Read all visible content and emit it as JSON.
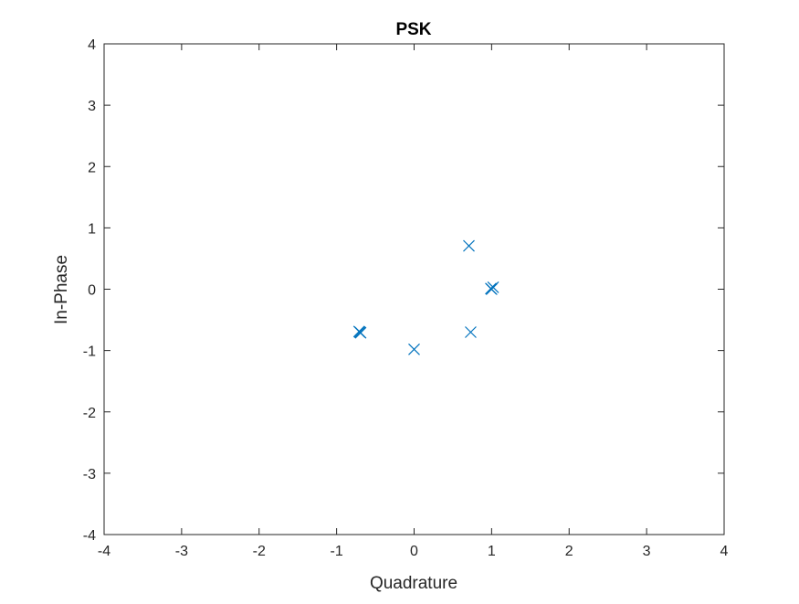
{
  "chart_data": {
    "type": "scatter",
    "title": "PSK",
    "xlabel": "Quadrature",
    "ylabel": "In-Phase",
    "xlim": [
      -4,
      4
    ],
    "ylim": [
      -4,
      4
    ],
    "xticks": [
      -4,
      -3,
      -2,
      -1,
      0,
      1,
      2,
      3,
      4
    ],
    "yticks": [
      -4,
      -3,
      -2,
      -1,
      0,
      1,
      2,
      3,
      4
    ],
    "grid": true,
    "marker": "x",
    "marker_color": "#0072BD",
    "series": [
      {
        "points": [
          [
            0.707,
            0.707
          ],
          [
            1.0,
            0.0
          ],
          [
            1.02,
            0.03
          ],
          [
            0.99,
            0.01
          ],
          [
            0.73,
            -0.7
          ],
          [
            0.0,
            -0.98
          ],
          [
            -0.71,
            -0.69
          ],
          [
            -0.69,
            -0.71
          ],
          [
            -0.7,
            -0.7
          ]
        ]
      }
    ]
  }
}
